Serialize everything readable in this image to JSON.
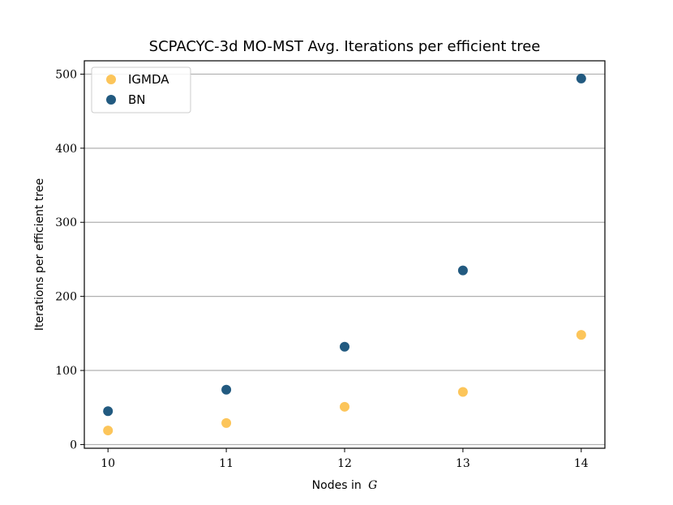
{
  "chart_data": {
    "type": "scatter",
    "title": "SCPACYC-3d MO-MST Avg. Iterations per efficient tree",
    "xlabel": "Nodes in",
    "xlabel_var": "G",
    "ylabel": "Iterations per efficient tree",
    "x": [
      10,
      11,
      12,
      13,
      14
    ],
    "x_ticks": [
      "10",
      "11",
      "12",
      "13",
      "14"
    ],
    "xlim": [
      9.8,
      14.2
    ],
    "y_ticks": [
      "0",
      "100",
      "200",
      "300",
      "400",
      "500"
    ],
    "ylim": [
      -5,
      518
    ],
    "grid": "horizontal",
    "legend_position": "top-left",
    "series": [
      {
        "name": "IGMDA",
        "color": "#fcc55a",
        "values": [
          19,
          29,
          51,
          71,
          148
        ]
      },
      {
        "name": "BN",
        "color": "#225a80",
        "values": [
          45,
          74,
          132,
          235,
          494
        ]
      }
    ]
  }
}
